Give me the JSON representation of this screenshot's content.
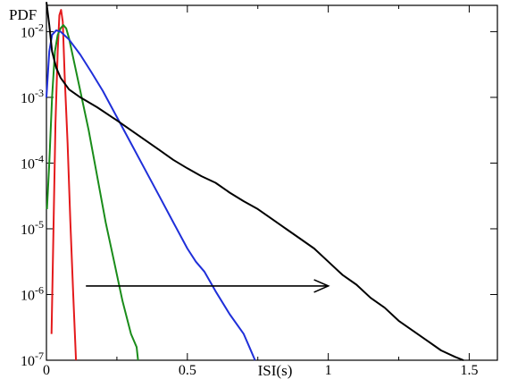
{
  "chart_data": {
    "type": "line",
    "title": "",
    "xlabel": "ISI(s)",
    "ylabel": "PDF",
    "xlim": [
      0,
      1.6
    ],
    "ylim_log10": [
      -7,
      -1.6
    ],
    "yscale": "log",
    "grid": false,
    "x_ticks": [
      {
        "value": 0,
        "label": "0"
      },
      {
        "value": 0.5,
        "label": "0.5"
      },
      {
        "value": 1,
        "label": "1"
      },
      {
        "value": 1.5,
        "label": "1.5"
      }
    ],
    "y_ticks": [
      {
        "exp": -7,
        "base": "10",
        "sup": "-7"
      },
      {
        "exp": -6,
        "base": "10",
        "sup": "-6"
      },
      {
        "exp": -5,
        "base": "10",
        "sup": "-5"
      },
      {
        "exp": -4,
        "base": "10",
        "sup": "-4"
      },
      {
        "exp": -3,
        "base": "10",
        "sup": "-3"
      },
      {
        "exp": -2,
        "base": "10",
        "sup": "-2"
      }
    ],
    "series": [
      {
        "color": "#e41a1c",
        "points": [
          [
            0.018,
            -6.6
          ],
          [
            0.025,
            -5.0
          ],
          [
            0.032,
            -3.4
          ],
          [
            0.04,
            -2.3
          ],
          [
            0.046,
            -1.75
          ],
          [
            0.052,
            -1.67
          ],
          [
            0.058,
            -1.85
          ],
          [
            0.065,
            -2.7
          ],
          [
            0.075,
            -3.7
          ],
          [
            0.085,
            -4.9
          ],
          [
            0.095,
            -6.0
          ],
          [
            0.105,
            -7.0
          ]
        ]
      },
      {
        "color": "#1a8c1a",
        "points": [
          [
            0.002,
            -4.7
          ],
          [
            0.01,
            -4.0
          ],
          [
            0.02,
            -3.0
          ],
          [
            0.03,
            -2.3
          ],
          [
            0.04,
            -2.05
          ],
          [
            0.05,
            -1.95
          ],
          [
            0.06,
            -1.9
          ],
          [
            0.07,
            -1.95
          ],
          [
            0.08,
            -2.1
          ],
          [
            0.1,
            -2.5
          ],
          [
            0.12,
            -2.9
          ],
          [
            0.15,
            -3.5
          ],
          [
            0.18,
            -4.2
          ],
          [
            0.21,
            -4.9
          ],
          [
            0.24,
            -5.5
          ],
          [
            0.27,
            -6.1
          ],
          [
            0.3,
            -6.6
          ],
          [
            0.32,
            -6.8
          ],
          [
            0.325,
            -7.0
          ]
        ]
      },
      {
        "color": "#1f2fd9",
        "points": [
          [
            0.0,
            -3.0
          ],
          [
            0.01,
            -2.3
          ],
          [
            0.02,
            -2.05
          ],
          [
            0.035,
            -1.98
          ],
          [
            0.05,
            -2.0
          ],
          [
            0.08,
            -2.12
          ],
          [
            0.12,
            -2.35
          ],
          [
            0.16,
            -2.62
          ],
          [
            0.2,
            -2.9
          ],
          [
            0.25,
            -3.3
          ],
          [
            0.3,
            -3.7
          ],
          [
            0.35,
            -4.1
          ],
          [
            0.4,
            -4.5
          ],
          [
            0.45,
            -4.9
          ],
          [
            0.5,
            -5.3
          ],
          [
            0.53,
            -5.5
          ],
          [
            0.56,
            -5.65
          ],
          [
            0.6,
            -5.95
          ],
          [
            0.65,
            -6.3
          ],
          [
            0.7,
            -6.6
          ],
          [
            0.72,
            -6.8
          ],
          [
            0.74,
            -7.0
          ]
        ]
      },
      {
        "color": "#000000",
        "points": [
          [
            0.0,
            -1.55
          ],
          [
            0.01,
            -1.9
          ],
          [
            0.02,
            -2.3
          ],
          [
            0.035,
            -2.55
          ],
          [
            0.05,
            -2.7
          ],
          [
            0.08,
            -2.88
          ],
          [
            0.12,
            -3.0
          ],
          [
            0.18,
            -3.15
          ],
          [
            0.25,
            -3.35
          ],
          [
            0.3,
            -3.5
          ],
          [
            0.35,
            -3.65
          ],
          [
            0.4,
            -3.8
          ],
          [
            0.45,
            -3.95
          ],
          [
            0.5,
            -4.08
          ],
          [
            0.55,
            -4.2
          ],
          [
            0.6,
            -4.3
          ],
          [
            0.65,
            -4.45
          ],
          [
            0.7,
            -4.58
          ],
          [
            0.75,
            -4.7
          ],
          [
            0.8,
            -4.85
          ],
          [
            0.85,
            -5.0
          ],
          [
            0.9,
            -5.15
          ],
          [
            0.95,
            -5.3
          ],
          [
            1.0,
            -5.5
          ],
          [
            1.05,
            -5.7
          ],
          [
            1.1,
            -5.85
          ],
          [
            1.15,
            -6.05
          ],
          [
            1.2,
            -6.2
          ],
          [
            1.25,
            -6.4
          ],
          [
            1.3,
            -6.55
          ],
          [
            1.35,
            -6.7
          ],
          [
            1.4,
            -6.85
          ],
          [
            1.45,
            -6.95
          ],
          [
            1.48,
            -7.0
          ]
        ]
      }
    ],
    "annotation": {
      "type": "arrow",
      "from": [
        0.14,
        -5.87
      ],
      "to": [
        1.0,
        -5.87
      ]
    }
  }
}
